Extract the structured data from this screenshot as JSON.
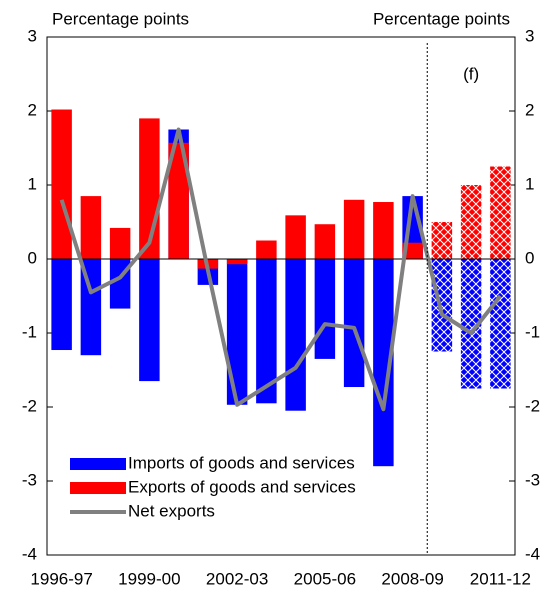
{
  "chart_data": {
    "type": "bar",
    "y_label_left": "Percentage points",
    "y_label_right": "Percentage points",
    "categories": [
      "1996-97",
      null,
      null,
      "1999-00",
      null,
      null,
      "2002-03",
      null,
      null,
      "2005-06",
      null,
      null,
      "2008-09",
      null,
      null,
      "2011-12"
    ],
    "series": [
      {
        "name": "Imports of goods and services",
        "color": "#0000ff",
        "kind": "bar",
        "values": [
          -1.23,
          -1.3,
          -0.67,
          -1.65,
          1.75,
          -0.35,
          -1.97,
          -1.95,
          -2.05,
          -1.35,
          -1.73,
          -2.8,
          0.85,
          -1.25,
          -1.75,
          -1.75
        ]
      },
      {
        "name": "Exports of goods and services",
        "color": "#ff0000",
        "kind": "bar",
        "values": [
          2.02,
          0.85,
          0.42,
          1.9,
          1.57,
          -0.13,
          -0.07,
          0.25,
          0.59,
          0.47,
          0.8,
          0.77,
          0.22,
          0.5,
          1.0,
          1.25
        ]
      },
      {
        "name": "Net exports",
        "color": "#808080",
        "kind": "line",
        "values": [
          0.8,
          -0.45,
          -0.25,
          0.22,
          1.75,
          -0.15,
          -1.97,
          -1.72,
          -1.47,
          -0.88,
          -0.93,
          -2.03,
          0.85,
          -0.75,
          -1.0,
          -0.5
        ]
      }
    ],
    "forecast_label": "(f)",
    "forecast_count": 3,
    "ylim": [
      -4,
      3
    ],
    "yticks": [
      -4,
      -3,
      -2,
      -1,
      0,
      1,
      2,
      3
    ],
    "y2lim": [
      -4,
      3
    ],
    "y2ticks": [
      -4,
      -3,
      -2,
      -1,
      0,
      1,
      2,
      3
    ],
    "legend": "lower left"
  }
}
